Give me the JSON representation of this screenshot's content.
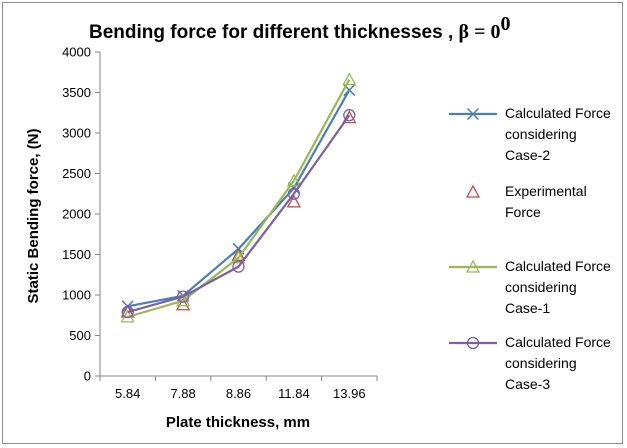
{
  "chart_data": {
    "type": "line",
    "title": "Bending force for different thicknesses , ",
    "title_symbol": "β = 0",
    "title_superscript": "0",
    "xlabel": "Plate thickness, mm",
    "ylabel": "Static Bending force, (N)",
    "categories": [
      "5.84",
      "7.88",
      "8.86",
      "11.84",
      "13.96"
    ],
    "ylim": [
      0,
      4000
    ],
    "yticks": [
      "0",
      "500",
      "1000",
      "1500",
      "2000",
      "2500",
      "3000",
      "3500",
      "4000"
    ],
    "grid": false,
    "legend_position": "right",
    "series": [
      {
        "name": "Calculated Force considering Case-2",
        "legend_lines": [
          "Calculated Force",
          "considering",
          "Case-2"
        ],
        "values": [
          860,
          990,
          1570,
          2320,
          3530
        ],
        "color": "#4a7ebb",
        "marker": "x",
        "line": true
      },
      {
        "name": "Experimental Force",
        "legend_lines": [
          "Experimental",
          "Force"
        ],
        "values": [
          790,
          880,
          1490,
          2150,
          3190
        ],
        "color": "#be4b48",
        "marker": "triangle",
        "line": false
      },
      {
        "name": "Calculated Force considering Case-1",
        "legend_lines": [
          "Calculated Force",
          "considering",
          "Case-1"
        ],
        "values": [
          730,
          930,
          1460,
          2410,
          3660
        ],
        "color": "#98b954",
        "marker": "triangle",
        "line": true
      },
      {
        "name": "Calculated Force considering Case-3",
        "legend_lines": [
          "Calculated Force",
          "considering",
          "Case-3"
        ],
        "values": [
          790,
          980,
          1350,
          2250,
          3220
        ],
        "color": "#7d60a0",
        "marker": "circle",
        "line": true
      }
    ]
  }
}
